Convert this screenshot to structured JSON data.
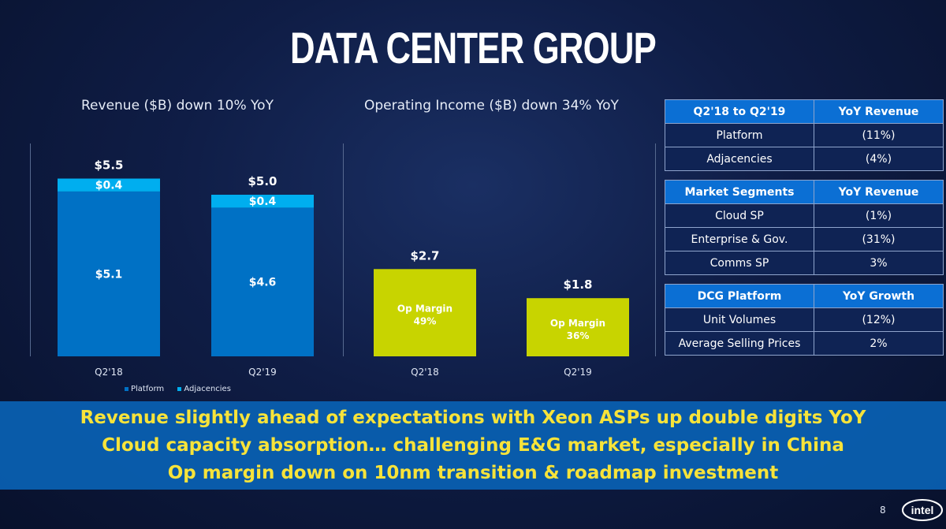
{
  "title": "DATA CENTER GROUP",
  "chart_data": [
    {
      "type": "bar",
      "stacked": true,
      "title": "Revenue ($B) down 10% YoY",
      "categories": [
        "Q2'18",
        "Q2'19"
      ],
      "series": [
        {
          "name": "Platform",
          "values": [
            5.1,
            4.6
          ],
          "labels": [
            "$5.1",
            "$4.6"
          ],
          "color": "#0071c5"
        },
        {
          "name": "Adjacencies",
          "values": [
            0.4,
            0.4
          ],
          "labels": [
            "$0.4",
            "$0.4"
          ],
          "color": "#00aeef"
        }
      ],
      "totals": [
        5.5,
        5.0
      ],
      "total_labels": [
        "$5.5",
        "$5.0"
      ],
      "legend": "bottom"
    },
    {
      "type": "bar",
      "title": "Operating Income ($B) down 34% YoY",
      "categories": [
        "Q2'18",
        "Q2'19"
      ],
      "values": [
        2.7,
        1.8
      ],
      "value_labels": [
        "$2.7",
        "$1.8"
      ],
      "bar_annotations": [
        [
          "Op Margin",
          "49%"
        ],
        [
          "Op Margin",
          "36%"
        ]
      ],
      "color": "#c8d400"
    }
  ],
  "tables": [
    {
      "headers": [
        "Q2'18 to Q2'19",
        "YoY Revenue"
      ],
      "rows": [
        [
          "Platform",
          "(11%)"
        ],
        [
          "Adjacencies",
          "(4%)"
        ]
      ]
    },
    {
      "headers": [
        "Market Segments",
        "YoY Revenue"
      ],
      "rows": [
        [
          "Cloud SP",
          "(1%)"
        ],
        [
          "Enterprise & Gov.",
          "(31%)"
        ],
        [
          "Comms SP",
          "3%"
        ]
      ]
    },
    {
      "headers": [
        "DCG Platform",
        "YoY Growth"
      ],
      "rows": [
        [
          "Unit Volumes",
          "(12%)"
        ],
        [
          "Average Selling Prices",
          "2%"
        ]
      ]
    }
  ],
  "banner": [
    "Revenue slightly ahead of expectations with Xeon ASPs up double digits YoY",
    "Cloud capacity absorption… challenging E&G market, especially in China",
    "Op margin down on 10nm transition & roadmap investment"
  ],
  "page_number": "8",
  "logo": "intel"
}
